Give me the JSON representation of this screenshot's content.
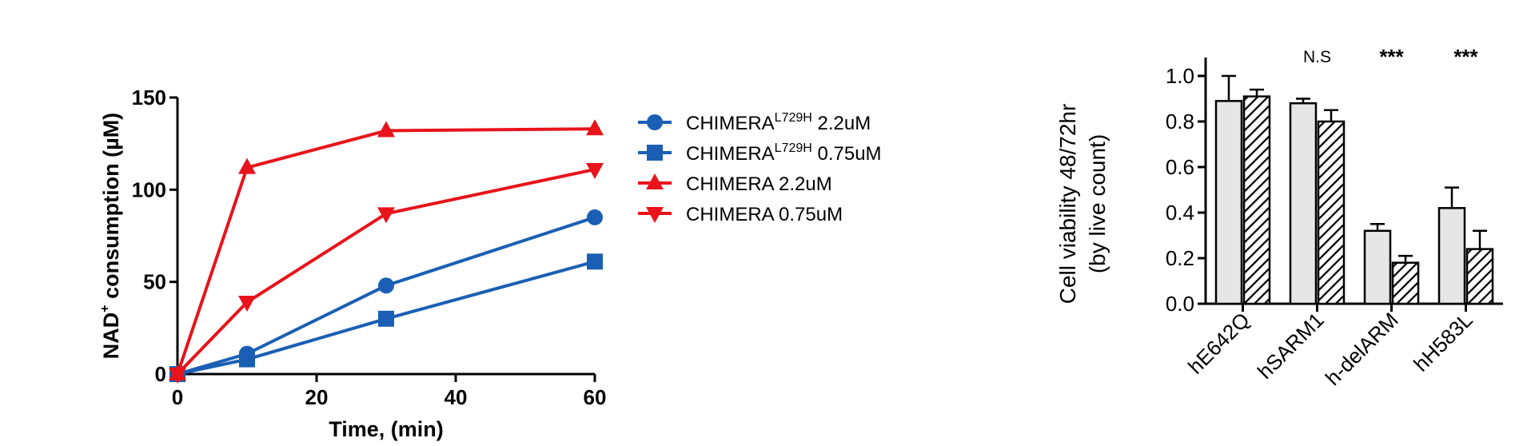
{
  "chart_data": [
    {
      "type": "line",
      "title": "",
      "xlabel": "Time, (min)",
      "ylabel_main": "NAD",
      "ylabel_sup": "+",
      "ylabel_rest": " consumption (µM)",
      "xlim": [
        0,
        60
      ],
      "ylim": [
        0,
        150
      ],
      "xticks": [
        "0",
        "20",
        "40",
        "60"
      ],
      "yticks": [
        "0",
        "50",
        "100",
        "150"
      ],
      "grid": false,
      "legend_position": "right",
      "x": [
        0,
        10,
        30,
        60
      ],
      "series": [
        {
          "name_main": "CHIMERA",
          "name_sup": "L729H",
          "name_rest": " 2.2uM",
          "marker": "circle",
          "color": "#1a5fb4",
          "values": [
            0,
            11,
            48,
            85
          ]
        },
        {
          "name_main": "CHIMERA",
          "name_sup": "L729H",
          "name_rest": " 0.75uM",
          "marker": "square",
          "color": "#1a5fb4",
          "values": [
            0,
            8,
            30,
            61
          ]
        },
        {
          "name_main": "CHIMERA 2.2uM",
          "name_sup": "",
          "name_rest": "",
          "marker": "triangle-up",
          "color": "#e8131b",
          "values": [
            0,
            112,
            132,
            133
          ]
        },
        {
          "name_main": "CHIMERA 0.75uM",
          "name_sup": "",
          "name_rest": "",
          "marker": "triangle-down",
          "color": "#e8131b",
          "values": [
            0,
            39,
            87,
            111
          ]
        }
      ]
    },
    {
      "type": "bar",
      "title": "",
      "ylabel_line1": "Cell viability 48/72hr",
      "ylabel_line2": "(by live count)",
      "ylim": [
        0,
        1.0
      ],
      "yticks": [
        "0.0",
        "0.2",
        "0.4",
        "0.6",
        "0.8",
        "1.0"
      ],
      "grid": false,
      "categories": [
        "hE642Q",
        "hSARM1",
        "h-delARM",
        "hH583L"
      ],
      "annotations": [
        "",
        "N.S",
        "***",
        "***"
      ],
      "series": [
        {
          "pattern": "solid-gray",
          "color": "#e6e6e6",
          "values": [
            0.89,
            0.88,
            0.32,
            0.42
          ],
          "errors": [
            0.11,
            0.02,
            0.03,
            0.09
          ]
        },
        {
          "pattern": "hatched",
          "color": "#ffffff",
          "values": [
            0.91,
            0.8,
            0.18,
            0.24
          ],
          "errors": [
            0.03,
            0.05,
            0.03,
            0.08
          ]
        }
      ]
    }
  ]
}
